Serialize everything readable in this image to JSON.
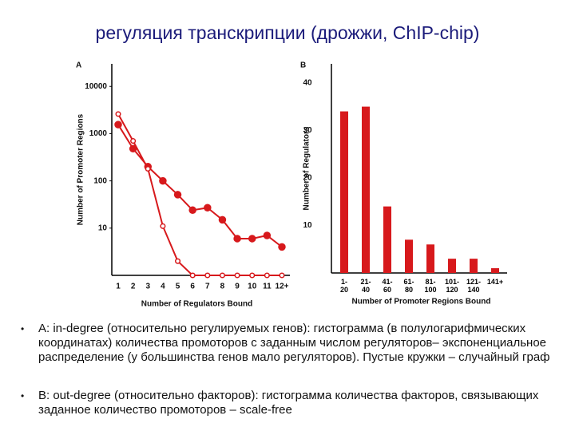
{
  "slide_title": "регуляция транскрипции (дрожжи, ChIP-chip)",
  "chart_data": [
    {
      "type": "line",
      "panel": "A",
      "log_y": true,
      "categories": [
        "1",
        "2",
        "3",
        "4",
        "5",
        "6",
        "7",
        "8",
        "9",
        "10",
        "11",
        "12+"
      ],
      "series": [
        {
          "name": null,
          "color": "#d7191c",
          "marker": "filled",
          "values": [
            1550,
            480,
            200,
            100,
            51,
            24,
            27,
            15,
            6,
            6,
            7,
            4
          ]
        },
        {
          "name": null,
          "color": "#d7191c",
          "marker": "open",
          "values": [
            2600,
            700,
            180,
            11,
            2,
            1,
            1,
            1,
            1,
            1,
            1,
            1
          ]
        }
      ],
      "ylim": [
        1,
        30000
      ],
      "yticks": [
        10,
        100,
        1000,
        10000
      ],
      "xlabel": "Number of Regulators Bound",
      "ylabel": "Number of Promoter Regions"
    },
    {
      "type": "bar",
      "panel": "B",
      "categories": [
        "1-\n20",
        "21-\n40",
        "41-\n60",
        "61-\n80",
        "81-\n100",
        "101-\n120",
        "121-\n140",
        "141+"
      ],
      "values": [
        34,
        35,
        14,
        7,
        6,
        3,
        3,
        1
      ],
      "color": "#d7191c",
      "ylim": [
        0,
        44
      ],
      "yticks": [
        10,
        20,
        30,
        40
      ],
      "xlabel": "Number of Promoter Regions Bound",
      "ylabel": "Number of Regulators"
    }
  ],
  "bullets": [
    "A: in-degree (относительно регулируемых генов): гистограмма (в полулогарифмических координатах) количества промоторов с заданным числом регуляторов– экспоненциальное распределение (у большинства генов мало регуляторов). Пустые кружки – случайный граф",
    "B: out-degree (относительно факторов): гистограмма количества факторов, связывающих заданное количество промоторов – scale-free"
  ]
}
